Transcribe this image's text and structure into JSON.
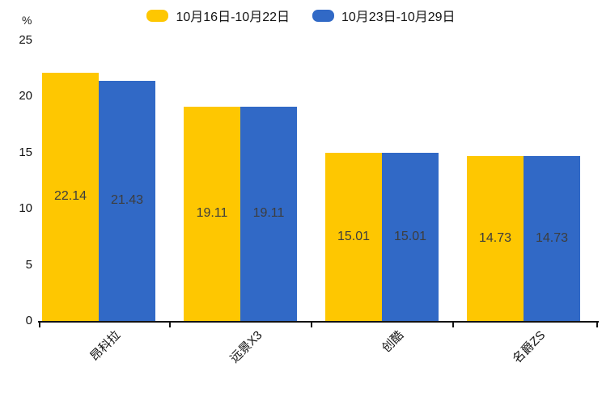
{
  "chart_data": {
    "type": "bar",
    "title": "",
    "unit": "%",
    "categories": [
      "昂科拉",
      "远景X3",
      "创酷",
      "名爵ZS"
    ],
    "series": [
      {
        "name": "10月16日-10月22日",
        "color": "#FEC701",
        "values": [
          22.14,
          19.11,
          15.01,
          14.73
        ]
      },
      {
        "name": "10月23日-10月29日",
        "color": "#3169C6",
        "values": [
          21.43,
          19.11,
          15.01,
          14.73
        ]
      }
    ],
    "ylim": [
      0,
      25
    ],
    "yticks": [
      0,
      5,
      10,
      15,
      20,
      25
    ],
    "grid": false,
    "legend_position": "top",
    "value_labels": "inside-center",
    "value_label_color": "#3d3d3d",
    "axis_color": "#131313",
    "background_color": "#ffffff"
  }
}
